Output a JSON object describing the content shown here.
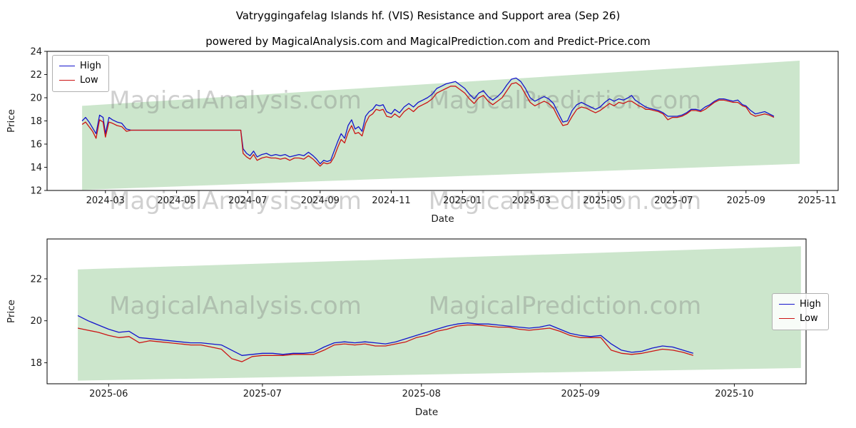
{
  "title": "Vatryggingafelag Islands hf. (VIS) Resistance and Support area (Sep 26)",
  "subtitle": "powered by MagicalAnalysis.com and MagicalPrediction.com and Predict-Price.com",
  "watermarks": {
    "left": "MagicalAnalysis.com",
    "right": "MagicalPrediction.com"
  },
  "legend": {
    "high": "High",
    "low": "Low"
  },
  "colors": {
    "high": "#1414cc",
    "low": "#cc1414",
    "band": "#008000",
    "band_opacity": 0.2,
    "watermark": "rgba(120,120,120,0.35)"
  },
  "chart_data": [
    {
      "type": "line",
      "xlabel": "Date",
      "ylabel": "Price",
      "x_encoding": "days since 2024-01-01",
      "xlim": [
        10,
        688
      ],
      "ylim": [
        12,
        24
      ],
      "legend_loc": "upper left",
      "xticks": [
        {
          "v": 60,
          "label": "2024-03"
        },
        {
          "v": 121,
          "label": "2024-05"
        },
        {
          "v": 182,
          "label": "2024-07"
        },
        {
          "v": 244,
          "label": "2024-09"
        },
        {
          "v": 305,
          "label": "2024-11"
        },
        {
          "v": 366,
          "label": "2025-01"
        },
        {
          "v": 425,
          "label": "2025-03"
        },
        {
          "v": 486,
          "label": "2025-05"
        },
        {
          "v": 547,
          "label": "2025-07"
        },
        {
          "v": 609,
          "label": "2025-09"
        },
        {
          "v": 670,
          "label": "2025-11"
        }
      ],
      "yticks": [
        12,
        14,
        16,
        18,
        20,
        22,
        24
      ],
      "band": {
        "label": "resistance and support area",
        "x": [
          40,
          655
        ],
        "upper": [
          19.3,
          23.2
        ],
        "lower": [
          12.05,
          14.3
        ]
      },
      "x": [
        40,
        43,
        46,
        49,
        52,
        55,
        58,
        60,
        63,
        66,
        70,
        74,
        78,
        82,
        90,
        100,
        110,
        120,
        130,
        140,
        150,
        160,
        170,
        176,
        178,
        181,
        184,
        187,
        190,
        194,
        198,
        202,
        206,
        210,
        214,
        218,
        222,
        226,
        230,
        234,
        238,
        241,
        244,
        247,
        250,
        253,
        256,
        259,
        262,
        265,
        268,
        271,
        274,
        277,
        280,
        283,
        286,
        289,
        292,
        295,
        298,
        301,
        305,
        308,
        312,
        316,
        320,
        324,
        328,
        332,
        336,
        340,
        344,
        348,
        352,
        356,
        360,
        364,
        368,
        372,
        376,
        380,
        384,
        388,
        392,
        396,
        400,
        404,
        408,
        412,
        416,
        420,
        424,
        428,
        432,
        436,
        440,
        444,
        448,
        452,
        456,
        460,
        464,
        468,
        472,
        476,
        480,
        484,
        488,
        492,
        496,
        500,
        504,
        508,
        511,
        514,
        517,
        520,
        523,
        526,
        530,
        534,
        538,
        542,
        546,
        550,
        554,
        558,
        562,
        566,
        570,
        574,
        578,
        582,
        586,
        590,
        594,
        598,
        602,
        606,
        609,
        613,
        617,
        621,
        625,
        629,
        633
      ],
      "series": [
        {
          "name": "High",
          "color_key": "high",
          "values": [
            18.0,
            18.3,
            17.9,
            17.4,
            16.9,
            18.5,
            18.3,
            16.9,
            18.3,
            18.1,
            17.9,
            17.8,
            17.3,
            17.2,
            17.2,
            17.2,
            17.2,
            17.2,
            17.2,
            17.2,
            17.2,
            17.2,
            17.2,
            17.2,
            15.6,
            15.2,
            15.0,
            15.4,
            14.9,
            15.1,
            15.2,
            15.0,
            15.1,
            15.0,
            15.1,
            14.9,
            15.0,
            15.1,
            15.0,
            15.3,
            15.0,
            14.7,
            14.3,
            14.6,
            14.5,
            14.6,
            15.4,
            16.2,
            16.9,
            16.5,
            17.6,
            18.1,
            17.3,
            17.5,
            17.1,
            18.4,
            18.8,
            19.0,
            19.4,
            19.3,
            19.4,
            18.8,
            18.6,
            19.0,
            18.7,
            19.2,
            19.5,
            19.2,
            19.6,
            19.8,
            20.0,
            20.3,
            20.8,
            21.0,
            21.2,
            21.3,
            21.4,
            21.1,
            20.8,
            20.3,
            19.9,
            20.4,
            20.6,
            20.1,
            19.8,
            20.1,
            20.5,
            21.1,
            21.6,
            21.7,
            21.4,
            20.8,
            20.0,
            19.7,
            19.9,
            20.1,
            19.9,
            19.5,
            18.7,
            17.9,
            18.0,
            18.9,
            19.4,
            19.6,
            19.4,
            19.2,
            19.0,
            19.2,
            19.6,
            19.9,
            19.7,
            19.9,
            19.8,
            20.0,
            20.2,
            19.8,
            19.6,
            19.4,
            19.2,
            19.1,
            19.0,
            18.9,
            18.7,
            18.4,
            18.4,
            18.4,
            18.5,
            18.7,
            19.0,
            19.0,
            18.9,
            19.2,
            19.4,
            19.7,
            19.9,
            19.9,
            19.8,
            19.7,
            19.8,
            19.4,
            19.3,
            18.9,
            18.6,
            18.7,
            18.8,
            18.6,
            18.4
          ]
        },
        {
          "name": "Low",
          "color_key": "low",
          "values": [
            17.7,
            17.9,
            17.5,
            17.1,
            16.5,
            18.1,
            17.9,
            16.6,
            17.9,
            17.8,
            17.6,
            17.5,
            17.1,
            17.2,
            17.2,
            17.2,
            17.2,
            17.2,
            17.2,
            17.2,
            17.2,
            17.2,
            17.2,
            17.2,
            15.2,
            14.9,
            14.7,
            15.1,
            14.6,
            14.8,
            14.9,
            14.8,
            14.8,
            14.7,
            14.8,
            14.6,
            14.8,
            14.8,
            14.7,
            15.0,
            14.7,
            14.4,
            14.1,
            14.4,
            14.3,
            14.4,
            14.9,
            15.7,
            16.4,
            16.1,
            17.0,
            17.6,
            16.9,
            17.0,
            16.7,
            17.8,
            18.4,
            18.6,
            19.0,
            18.9,
            19.0,
            18.4,
            18.3,
            18.6,
            18.3,
            18.8,
            19.1,
            18.8,
            19.2,
            19.4,
            19.6,
            19.9,
            20.4,
            20.6,
            20.8,
            21.0,
            21.0,
            20.7,
            20.4,
            19.9,
            19.5,
            20.0,
            20.2,
            19.7,
            19.4,
            19.7,
            20.0,
            20.6,
            21.2,
            21.3,
            21.0,
            20.3,
            19.6,
            19.3,
            19.5,
            19.7,
            19.5,
            19.1,
            18.3,
            17.6,
            17.7,
            18.4,
            19.0,
            19.2,
            19.1,
            18.9,
            18.7,
            18.9,
            19.2,
            19.5,
            19.3,
            19.6,
            19.5,
            19.7,
            19.7,
            19.5,
            19.3,
            19.2,
            19.0,
            19.0,
            18.9,
            18.8,
            18.6,
            18.1,
            18.3,
            18.3,
            18.4,
            18.6,
            18.9,
            18.9,
            18.8,
            19.0,
            19.3,
            19.6,
            19.8,
            19.8,
            19.7,
            19.6,
            19.6,
            19.3,
            19.2,
            18.6,
            18.4,
            18.5,
            18.6,
            18.5,
            18.3
          ]
        }
      ]
    },
    {
      "type": "line",
      "xlabel": "Date",
      "ylabel": "Price",
      "x_encoding": "days since 2024-01-01",
      "xlim": [
        505,
        653
      ],
      "ylim": [
        17.0,
        23.9
      ],
      "legend_loc": "center right",
      "xticks": [
        {
          "v": 517,
          "label": "2025-06"
        },
        {
          "v": 547,
          "label": "2025-07"
        },
        {
          "v": 578,
          "label": "2025-08"
        },
        {
          "v": 609,
          "label": "2025-09"
        },
        {
          "v": 639,
          "label": "2025-10"
        }
      ],
      "yticks": [
        18,
        20,
        22
      ],
      "band": {
        "label": "resistance and support area",
        "x": [
          511,
          652
        ],
        "upper": [
          22.45,
          23.55
        ],
        "lower": [
          17.15,
          17.75
        ]
      },
      "x": [
        511,
        513,
        515,
        517,
        519,
        521,
        523,
        525,
        527,
        529,
        531,
        533,
        535,
        537,
        539,
        541,
        543,
        545,
        547,
        549,
        551,
        553,
        555,
        557,
        559,
        561,
        563,
        565,
        567,
        569,
        571,
        573,
        575,
        577,
        579,
        581,
        583,
        585,
        587,
        589,
        591,
        593,
        595,
        597,
        599,
        601,
        603,
        605,
        607,
        609,
        611,
        613,
        615,
        617,
        619,
        621,
        623,
        625,
        627,
        629,
        631
      ],
      "series": [
        {
          "name": "High",
          "color_key": "high",
          "values": [
            20.25,
            20.0,
            19.8,
            19.6,
            19.45,
            19.5,
            19.2,
            19.15,
            19.1,
            19.05,
            19.0,
            18.95,
            18.95,
            18.9,
            18.85,
            18.6,
            18.35,
            18.4,
            18.45,
            18.45,
            18.4,
            18.45,
            18.45,
            18.5,
            18.75,
            18.95,
            19.0,
            18.95,
            19.0,
            18.95,
            18.9,
            19.0,
            19.15,
            19.3,
            19.45,
            19.6,
            19.75,
            19.85,
            19.9,
            19.85,
            19.85,
            19.8,
            19.75,
            19.7,
            19.65,
            19.7,
            19.8,
            19.6,
            19.4,
            19.3,
            19.25,
            19.3,
            18.9,
            18.6,
            18.5,
            18.55,
            18.7,
            18.8,
            18.75,
            18.6,
            18.45
          ]
        },
        {
          "name": "Low",
          "color_key": "low",
          "values": [
            19.65,
            19.55,
            19.45,
            19.3,
            19.2,
            19.25,
            18.95,
            19.05,
            19.0,
            18.95,
            18.9,
            18.85,
            18.85,
            18.75,
            18.65,
            18.2,
            18.05,
            18.3,
            18.35,
            18.35,
            18.35,
            18.4,
            18.4,
            18.4,
            18.6,
            18.85,
            18.9,
            18.85,
            18.9,
            18.8,
            18.8,
            18.9,
            19.0,
            19.2,
            19.3,
            19.5,
            19.6,
            19.75,
            19.8,
            19.8,
            19.75,
            19.7,
            19.7,
            19.6,
            19.55,
            19.6,
            19.65,
            19.5,
            19.3,
            19.2,
            19.2,
            19.2,
            18.6,
            18.45,
            18.4,
            18.45,
            18.55,
            18.65,
            18.6,
            18.5,
            18.35
          ]
        }
      ]
    }
  ]
}
